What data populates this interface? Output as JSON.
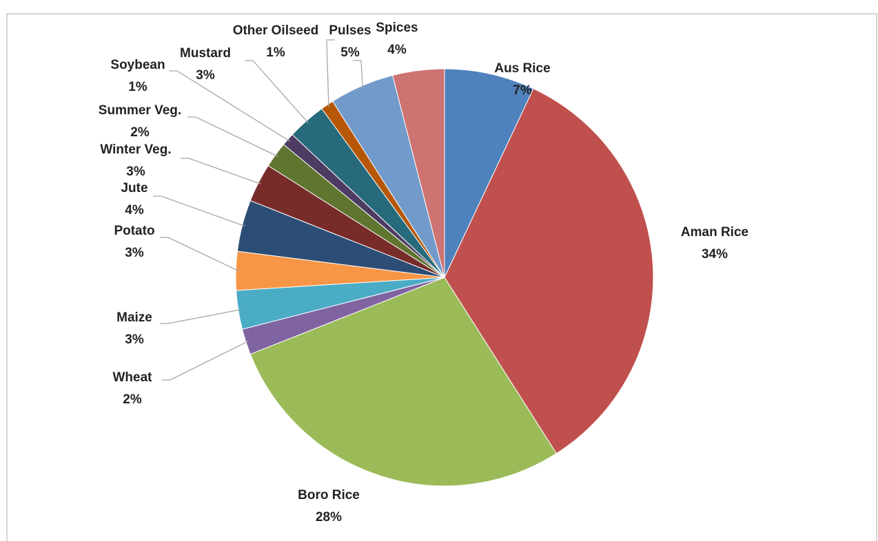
{
  "chart_data": {
    "type": "pie",
    "categories": [
      "Aus Rice",
      "Aman Rice",
      "Boro Rice",
      "Wheat",
      "Maize",
      "Potato",
      "Jute",
      "Winter Veg.",
      "Summer Veg.",
      "Soybean",
      "Mustard",
      "Other Oilseed",
      "Pulses",
      "Spices"
    ],
    "values": [
      7,
      34,
      28,
      2,
      3,
      3,
      4,
      3,
      2,
      1,
      3,
      1,
      5,
      4
    ],
    "value_labels": [
      "7%",
      "34%",
      "28%",
      "2%",
      "3%",
      "3%",
      "4%",
      "3%",
      "2%",
      "1%",
      "3%",
      "1%",
      "5%",
      "4%"
    ],
    "colors": [
      "#4f81bd",
      "#c0504d",
      "#9bbb59",
      "#8064a2",
      "#4bacc6",
      "#f79646",
      "#2c4d75",
      "#772c2a",
      "#5f7530",
      "#4d3b62",
      "#276a7c",
      "#b65708",
      "#729aca",
      "#cd7371"
    ]
  }
}
